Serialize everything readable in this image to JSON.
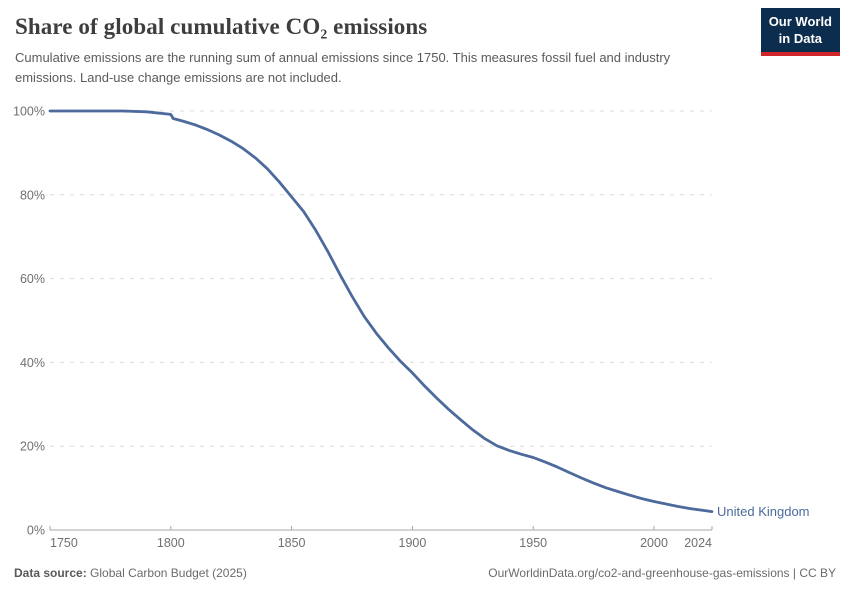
{
  "header": {
    "title": "Share of global cumulative CO₂ emissions",
    "subtitle": "Cumulative emissions are the running sum of annual emissions since 1750. This measures fossil fuel and industry emissions. Land-use change emissions are not included.",
    "logo": {
      "line1": "Our World",
      "line2": "in Data"
    }
  },
  "footer": {
    "source_label": "Data source:",
    "source_text": "Global Carbon Budget (2025)",
    "right_text": "OurWorldinData.org/co2-and-greenhouse-gas-emissions | CC BY"
  },
  "chart_data": {
    "type": "line",
    "title": "Share of global cumulative CO₂ emissions",
    "xlabel": "",
    "ylabel": "",
    "xlim": [
      1750,
      2024
    ],
    "ylim": [
      0,
      100
    ],
    "xticks": [
      1750,
      1800,
      1850,
      1900,
      1950,
      2000,
      2024
    ],
    "yticks": [
      0,
      20,
      40,
      60,
      80,
      100
    ],
    "ytick_suffix": "%",
    "grid": "horizontal-dashed",
    "legend_position": "end-of-line-label",
    "end_label": "United Kingdom",
    "series": [
      {
        "name": "United Kingdom",
        "color": "#4C6A9C",
        "points": [
          [
            1750,
            100
          ],
          [
            1760,
            100
          ],
          [
            1770,
            100
          ],
          [
            1780,
            100
          ],
          [
            1790,
            99.8
          ],
          [
            1800,
            99.2
          ],
          [
            1801,
            98.2
          ],
          [
            1805,
            97.6
          ],
          [
            1810,
            96.7
          ],
          [
            1815,
            95.6
          ],
          [
            1820,
            94.3
          ],
          [
            1825,
            92.8
          ],
          [
            1830,
            91.0
          ],
          [
            1835,
            88.8
          ],
          [
            1840,
            86.2
          ],
          [
            1845,
            83.0
          ],
          [
            1850,
            79.5
          ],
          [
            1855,
            76.0
          ],
          [
            1860,
            71.5
          ],
          [
            1865,
            66.5
          ],
          [
            1870,
            61.0
          ],
          [
            1875,
            55.8
          ],
          [
            1880,
            51.0
          ],
          [
            1885,
            47.0
          ],
          [
            1890,
            43.5
          ],
          [
            1895,
            40.3
          ],
          [
            1900,
            37.5
          ],
          [
            1905,
            34.4
          ],
          [
            1910,
            31.5
          ],
          [
            1915,
            28.8
          ],
          [
            1920,
            26.3
          ],
          [
            1925,
            23.9
          ],
          [
            1930,
            21.8
          ],
          [
            1935,
            20.1
          ],
          [
            1940,
            19.0
          ],
          [
            1945,
            18.1
          ],
          [
            1950,
            17.3
          ],
          [
            1955,
            16.2
          ],
          [
            1960,
            15.0
          ],
          [
            1965,
            13.7
          ],
          [
            1970,
            12.4
          ],
          [
            1975,
            11.2
          ],
          [
            1980,
            10.1
          ],
          [
            1985,
            9.2
          ],
          [
            1990,
            8.3
          ],
          [
            1995,
            7.5
          ],
          [
            2000,
            6.8
          ],
          [
            2005,
            6.2
          ],
          [
            2010,
            5.6
          ],
          [
            2015,
            5.1
          ],
          [
            2020,
            4.7
          ],
          [
            2024,
            4.4
          ]
        ]
      }
    ]
  },
  "colors": {
    "line": "#4C6A9C",
    "grid": "#dcdcdc",
    "axis": "#a7a7a7",
    "tick_text": "#707070",
    "title_text": "#3e3e3e",
    "subtitle_text": "#5b5b5b",
    "footer_text": "#6b6b6b",
    "footer_label_text": "#5a5a5a",
    "logo_bg": "#0d2d4e",
    "logo_red": "#d0252b"
  }
}
